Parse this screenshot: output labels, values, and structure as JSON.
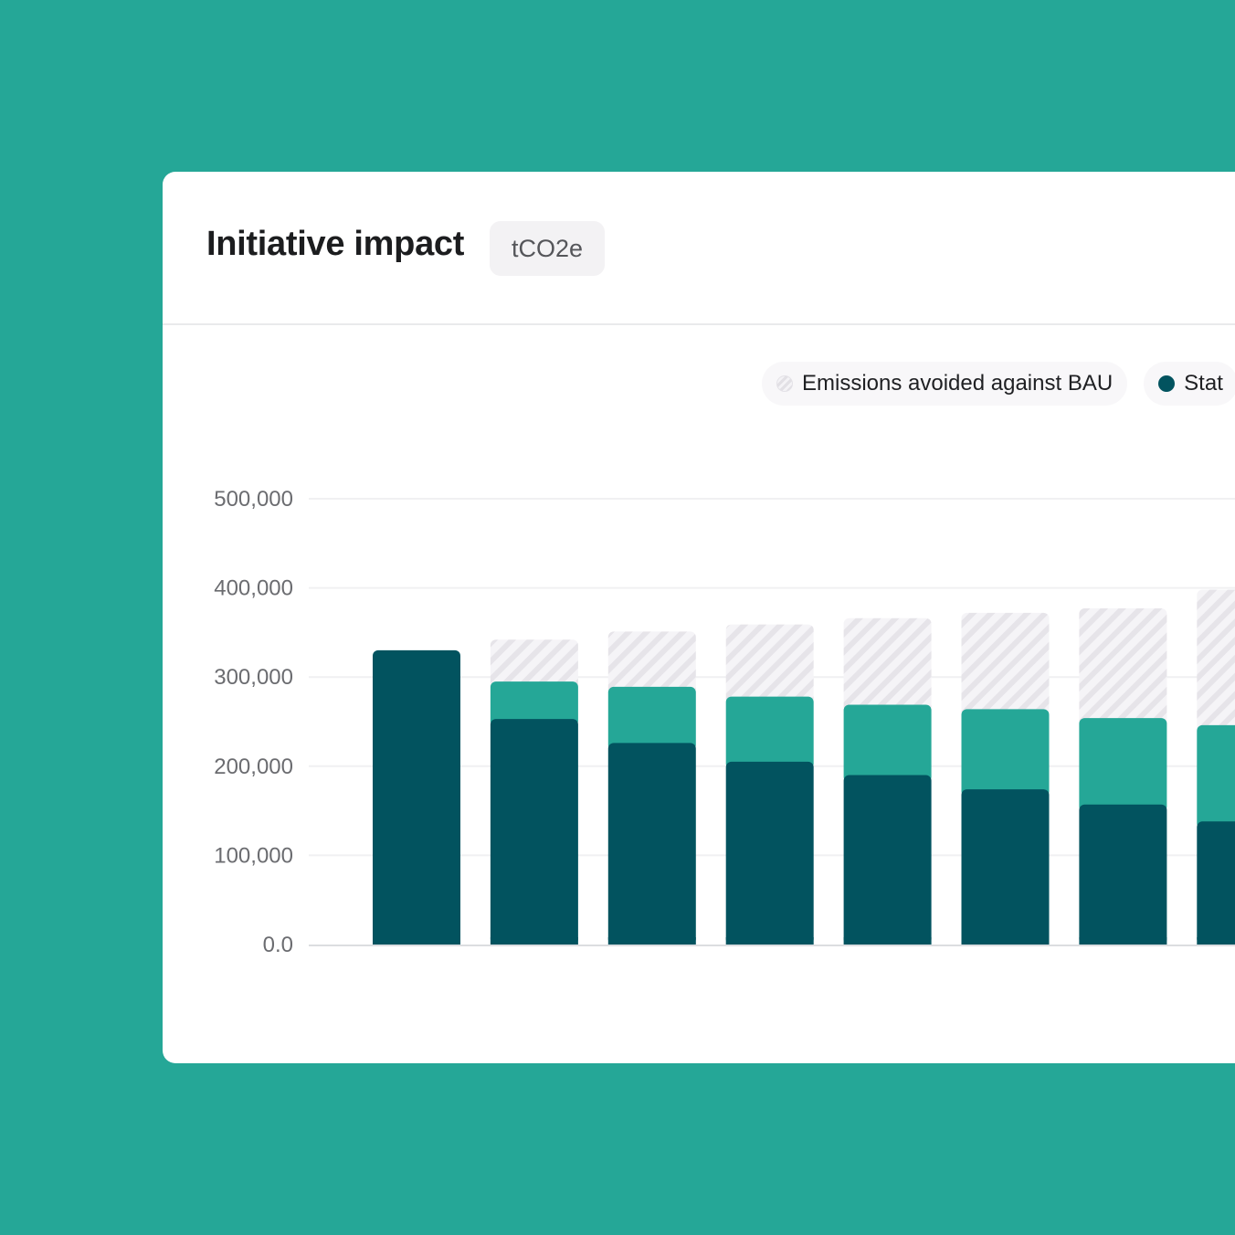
{
  "card": {
    "title": "Initiative impact",
    "unit": "tCO2e"
  },
  "legend": [
    {
      "label": "Emissions avoided against BAU",
      "swatch": "hatched-icon"
    },
    {
      "label": "Stat",
      "swatch": "dark-dot-icon"
    }
  ],
  "colors": {
    "background": "#25a797",
    "base": "#02535f",
    "reduction": "#25a797",
    "avoided_hatch": "#e6e4e9"
  },
  "chart_data": {
    "type": "bar",
    "stacked": true,
    "title": "Initiative impact",
    "ylabel": "",
    "xlabel": "",
    "ylim": [
      0,
      500000
    ],
    "y_ticks": [
      0,
      100000,
      200000,
      300000,
      400000,
      500000
    ],
    "y_tick_labels": [
      "0.0",
      "100,000",
      "200,000",
      "300,000",
      "400,000",
      "500,000"
    ],
    "grid": true,
    "series": [
      {
        "values": [
          330000,
          253000,
          226000,
          205000,
          190000,
          174000,
          157000,
          138000
        ]
      },
      {
        "values": [
          0,
          42000,
          63000,
          73000,
          79000,
          90000,
          97000,
          108000
        ]
      },
      {
        "values": [
          0,
          47000,
          62000,
          81000,
          97000,
          108000,
          123000,
          152000
        ]
      }
    ]
  }
}
